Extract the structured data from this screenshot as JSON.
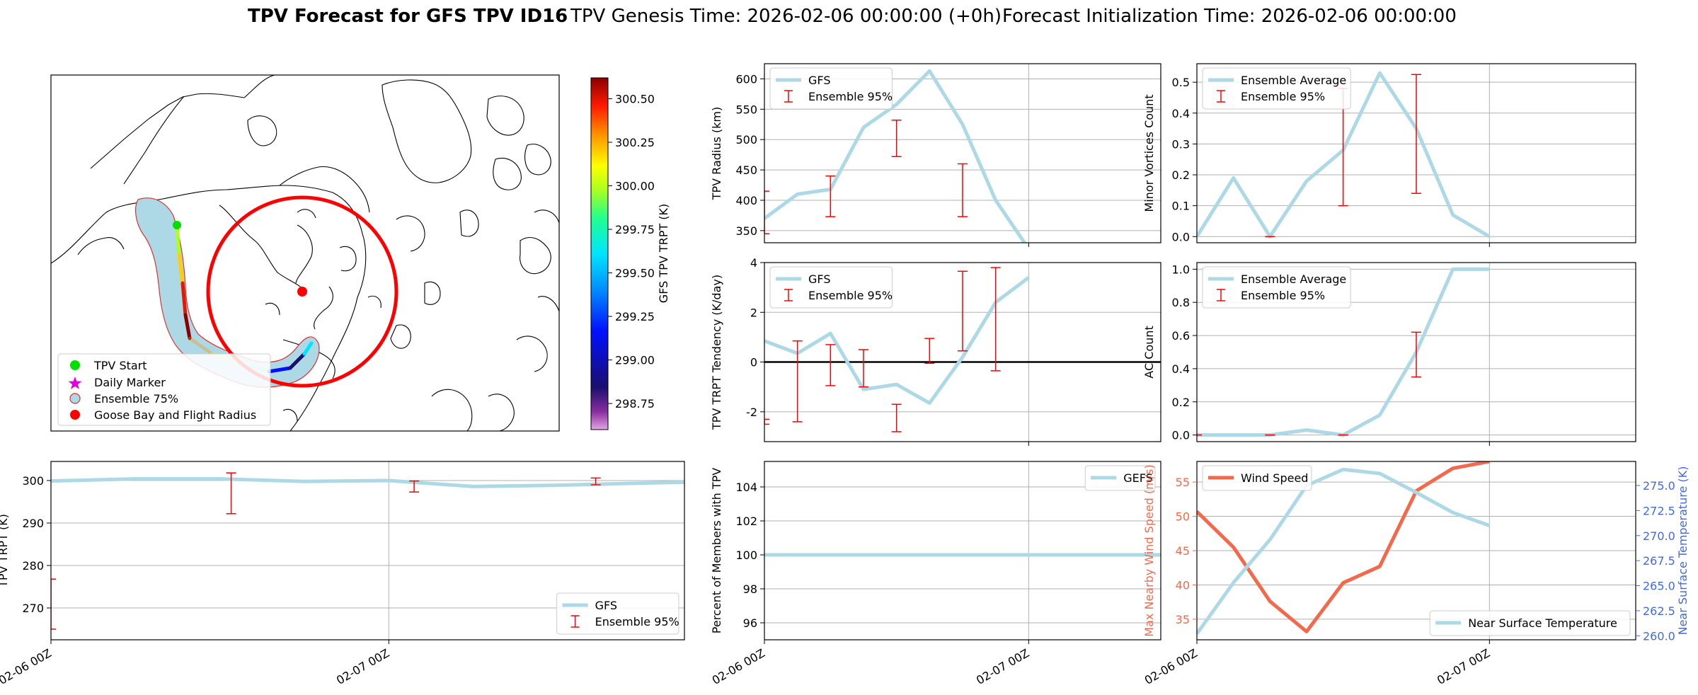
{
  "figure": {
    "title_bold": "TPV Forecast for GFS TPV ID16",
    "title_genesis": "TPV Genesis Time: 2026-02-06 00:00:00 (+0h)",
    "title_init": "Forecast Initialization Time: 2026-02-06 00:00:00"
  },
  "colors": {
    "gfs_line": "#add8e6",
    "error_bar": "#ff0000",
    "wind_line": "#f4694b",
    "temp_axis": "#4169e1",
    "wind_axis": "#f4694b",
    "zero_line": "#000000",
    "grid": "#b0b0b0"
  },
  "map": {
    "colorbar": {
      "label": "GFS TPV TRPT (K)",
      "ticks": [
        "300.50",
        "300.25",
        "300.00",
        "299.75",
        "299.50",
        "299.25",
        "299.00",
        "298.75"
      ],
      "tick_values": [
        300.5,
        300.25,
        300.0,
        299.75,
        299.5,
        299.25,
        299.0,
        298.75
      ],
      "range": [
        298.6,
        300.62
      ]
    },
    "legend": [
      {
        "label": "TPV Start",
        "icon": "green-dot-icon",
        "color": "#00e000"
      },
      {
        "label": "Daily Marker",
        "icon": "magenta-star-icon",
        "color": "#e000e0"
      },
      {
        "label": "Ensemble 75%",
        "icon": "blue-patch-icon",
        "color": "#add8e6"
      },
      {
        "label": "Goose Bay and Flight Radius",
        "icon": "red-dot-icon",
        "color": "#ff0000"
      }
    ]
  },
  "time_axis": {
    "tick_labels": [
      "02-06 00Z",
      "02-07 00Z"
    ]
  },
  "chart_data": [
    {
      "id": "trpt",
      "type": "line",
      "ylabel": "TPV TRPT (K)",
      "ylim": [
        262.5,
        304.5
      ],
      "xlim": [
        0,
        45
      ],
      "x_ticks": [
        0,
        24
      ],
      "y_ticks": [
        270,
        280,
        290,
        300
      ],
      "grid": true,
      "legend": {
        "position": "lower-right",
        "entries": [
          "GFS",
          "Ensemble 95%"
        ]
      },
      "series": [
        {
          "name": "GFS",
          "x": [
            0,
            6,
            12,
            18,
            24,
            30,
            36,
            42,
            45
          ],
          "y": [
            299.9,
            300.4,
            300.4,
            299.8,
            300.0,
            298.6,
            298.9,
            299.4,
            299.6
          ]
        }
      ],
      "error_bars": [
        {
          "x": 0,
          "low": 265.0,
          "high": 276.8
        },
        {
          "x": 12.8,
          "low": 292.2,
          "high": 301.8
        },
        {
          "x": 25.8,
          "low": 297.3,
          "high": 299.9
        },
        {
          "x": 38.7,
          "low": 299.0,
          "high": 300.6
        }
      ]
    },
    {
      "id": "radius",
      "type": "line",
      "ylabel": "TPV Radius (km)",
      "ylim": [
        330,
        625
      ],
      "xlim": [
        0,
        36
      ],
      "x_ticks": [
        24
      ],
      "y_ticks": [
        350,
        400,
        450,
        500,
        550,
        600
      ],
      "grid": true,
      "legend": {
        "position": "upper-left",
        "entries": [
          "GFS",
          "Ensemble 95%"
        ]
      },
      "series": [
        {
          "name": "GFS",
          "x": [
            0,
            3,
            6,
            9,
            12,
            15,
            18,
            21,
            24
          ],
          "y": [
            370,
            410,
            418,
            520,
            558,
            613,
            525,
            400,
            320
          ]
        }
      ],
      "error_bars": [
        {
          "x": 0,
          "low": 345,
          "high": 415
        },
        {
          "x": 6,
          "low": 373,
          "high": 440
        },
        {
          "x": 12,
          "low": 472,
          "high": 532
        },
        {
          "x": 18,
          "low": 373,
          "high": 460
        }
      ]
    },
    {
      "id": "tendency",
      "type": "line",
      "ylabel": "TPV TRPT Tendency (K/day)",
      "ylim": [
        -3.2,
        4.0
      ],
      "xlim": [
        0,
        36
      ],
      "x_ticks": [
        24
      ],
      "y_ticks": [
        -2,
        0,
        2,
        4
      ],
      "grid": true,
      "zero_line": true,
      "legend": {
        "position": "upper-left",
        "entries": [
          "GFS",
          "Ensemble 95%"
        ]
      },
      "series": [
        {
          "name": "GFS",
          "x": [
            0,
            3,
            6,
            9,
            12,
            15,
            18,
            21,
            24
          ],
          "y": [
            0.85,
            0.35,
            1.15,
            -1.1,
            -0.9,
            -1.65,
            0.2,
            2.4,
            3.4
          ]
        }
      ],
      "error_bars": [
        {
          "x": 0,
          "low": -2.5,
          "high": -2.3
        },
        {
          "x": 3,
          "low": -2.4,
          "high": 0.85
        },
        {
          "x": 6,
          "low": -0.95,
          "high": 0.7
        },
        {
          "x": 9,
          "low": -1.0,
          "high": 0.5
        },
        {
          "x": 12,
          "low": -2.8,
          "high": -1.7
        },
        {
          "x": 15,
          "low": -0.05,
          "high": 0.95
        },
        {
          "x": 18,
          "low": 0.45,
          "high": 3.65
        },
        {
          "x": 21,
          "low": -0.35,
          "high": 3.8
        }
      ]
    },
    {
      "id": "percent",
      "type": "line",
      "ylabel": "Percent of Members with TPV",
      "ylim": [
        95.0,
        105.5
      ],
      "xlim": [
        0,
        36
      ],
      "x_ticks": [
        0,
        24
      ],
      "y_ticks": [
        96,
        98,
        100,
        102,
        104
      ],
      "grid": true,
      "legend": {
        "position": "upper-right",
        "entries": [
          "GEFS"
        ]
      },
      "series": [
        {
          "name": "GEFS",
          "x": [
            0,
            36
          ],
          "y": [
            100,
            100
          ]
        }
      ]
    },
    {
      "id": "minor",
      "type": "line",
      "ylabel": "Minor Vortices Count",
      "ylim": [
        -0.02,
        0.56
      ],
      "xlim": [
        0,
        36
      ],
      "x_ticks": [
        24
      ],
      "y_ticks": [
        0.0,
        0.1,
        0.2,
        0.3,
        0.4,
        0.5
      ],
      "y_tick_labels": [
        "0.0",
        "0.1",
        "0.2",
        "0.3",
        "0.4",
        "0.5"
      ],
      "grid": true,
      "legend": {
        "position": "upper-left",
        "entries": [
          "Ensemble Average",
          "Ensemble 95%"
        ]
      },
      "series": [
        {
          "name": "Ensemble Average",
          "x": [
            0,
            3,
            6,
            9,
            12,
            15,
            18,
            21,
            24
          ],
          "y": [
            0.0,
            0.19,
            0.0,
            0.18,
            0.28,
            0.53,
            0.35,
            0.07,
            0.0
          ]
        }
      ],
      "error_bars": [
        {
          "x": 6,
          "low": 0.0,
          "high": 0.0
        },
        {
          "x": 12,
          "low": 0.1,
          "high": 0.48
        },
        {
          "x": 18,
          "low": 0.14,
          "high": 0.525
        }
      ]
    },
    {
      "id": "ac",
      "type": "line",
      "ylabel": "AC Count",
      "ylim": [
        -0.04,
        1.04
      ],
      "xlim": [
        0,
        36
      ],
      "x_ticks": [
        24
      ],
      "y_ticks": [
        0.0,
        0.2,
        0.4,
        0.6,
        0.8,
        1.0
      ],
      "y_tick_labels": [
        "0.0",
        "0.2",
        "0.4",
        "0.6",
        "0.8",
        "1.0"
      ],
      "grid": true,
      "legend": {
        "position": "upper-left",
        "entries": [
          "Ensemble Average",
          "Ensemble 95%"
        ]
      },
      "series": [
        {
          "name": "Ensemble Average",
          "x": [
            0,
            3,
            6,
            9,
            12,
            15,
            18,
            21,
            24
          ],
          "y": [
            0.0,
            0.0,
            0.0,
            0.03,
            0.0,
            0.12,
            0.5,
            1.0,
            1.0
          ]
        }
      ],
      "error_bars": [
        {
          "x": 0,
          "low": 0.0,
          "high": 0.0
        },
        {
          "x": 6,
          "low": 0.0,
          "high": 0.0
        },
        {
          "x": 12,
          "low": 0.0,
          "high": 0.0
        },
        {
          "x": 18,
          "low": 0.35,
          "high": 0.62
        }
      ]
    },
    {
      "id": "wind_temp",
      "type": "line",
      "ylabel": "Max Nearby Wind Speed (m/s)",
      "ylabel_right": "Near Surface Temperature (K)",
      "ylim": [
        32.0,
        58.0
      ],
      "ylim_right": [
        259.6,
        277.4
      ],
      "xlim": [
        0,
        36
      ],
      "x_ticks": [
        0,
        24
      ],
      "y_ticks": [
        35,
        40,
        45,
        50,
        55
      ],
      "y_ticks_right": [
        260.0,
        262.5,
        265.0,
        267.5,
        270.0,
        272.5,
        275.0
      ],
      "y_tick_labels_right": [
        "260.0",
        "262.5",
        "265.0",
        "267.5",
        "270.0",
        "272.5",
        "275.0"
      ],
      "grid": true,
      "legend": {
        "entries": [
          "Wind Speed",
          "Near Surface Temperature"
        ],
        "positions": [
          "upper-left",
          "lower-right"
        ]
      },
      "series": [
        {
          "name": "Wind Speed",
          "axis": "left",
          "x": [
            0,
            3,
            6,
            9,
            12,
            15,
            18,
            21,
            24
          ],
          "y": [
            50.7,
            45.5,
            37.6,
            33.2,
            40.3,
            42.7,
            53.7,
            57.0,
            58.0
          ]
        },
        {
          "name": "Near Surface Temperature",
          "axis": "right",
          "x": [
            0,
            3,
            6,
            9,
            12,
            15,
            18,
            21,
            24
          ],
          "y": [
            260.2,
            265.3,
            269.6,
            275.0,
            276.6,
            276.2,
            274.3,
            272.3,
            271.0
          ]
        }
      ]
    }
  ]
}
